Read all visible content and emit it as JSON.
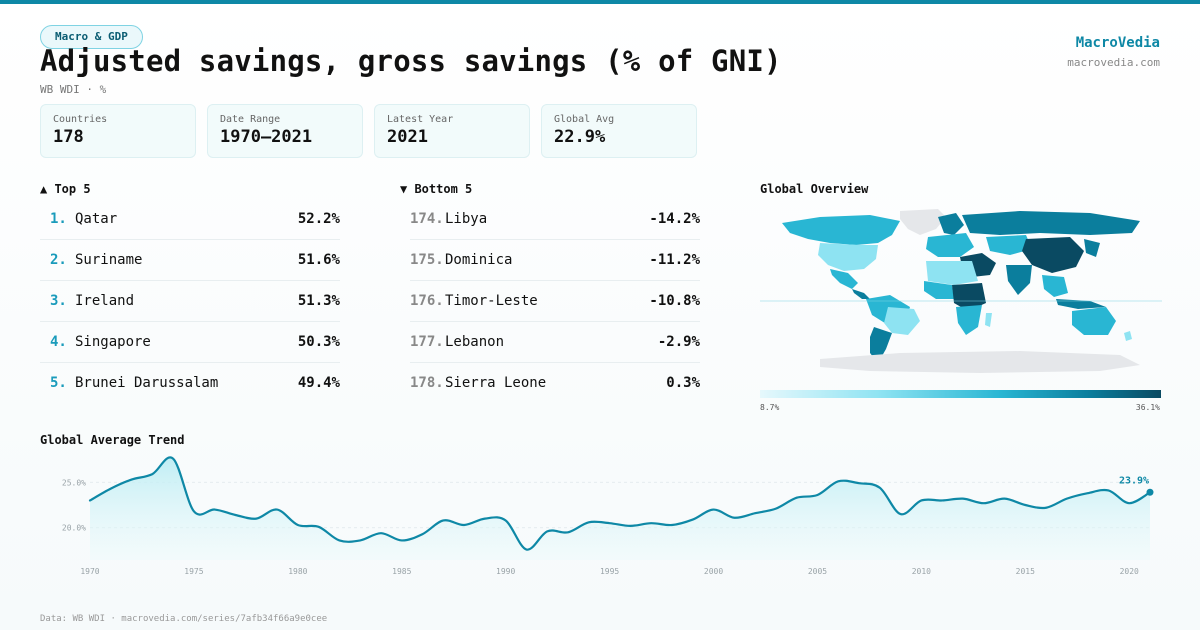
{
  "header": {
    "badge": "Macro & GDP",
    "title": "Adjusted savings, gross savings (% of GNI)",
    "subtitle": "WB WDI · %"
  },
  "brand": {
    "name": "MacroVedia",
    "url": "macrovedia.com"
  },
  "stats": [
    {
      "label": "Countries",
      "value": "178"
    },
    {
      "label": "Date Range",
      "value": "1970–2021"
    },
    {
      "label": "Latest Year",
      "value": "2021"
    },
    {
      "label": "Global Avg",
      "value": "22.9%"
    }
  ],
  "top5": {
    "title": "▲ Top 5",
    "items": [
      {
        "rank": "1.",
        "name": "Qatar",
        "value": "52.2%"
      },
      {
        "rank": "2.",
        "name": "Suriname",
        "value": "51.6%"
      },
      {
        "rank": "3.",
        "name": "Ireland",
        "value": "51.3%"
      },
      {
        "rank": "4.",
        "name": "Singapore",
        "value": "50.3%"
      },
      {
        "rank": "5.",
        "name": "Brunei Darussalam",
        "value": "49.4%"
      }
    ]
  },
  "bottom5": {
    "title": "▼ Bottom 5",
    "items": [
      {
        "rank": "174.",
        "name": "Libya",
        "value": "-14.2%"
      },
      {
        "rank": "175.",
        "name": "Dominica",
        "value": "-11.2%"
      },
      {
        "rank": "176.",
        "name": "Timor-Leste",
        "value": "-10.8%"
      },
      {
        "rank": "177.",
        "name": "Lebanon",
        "value": "-2.9%"
      },
      {
        "rank": "178.",
        "name": "Sierra Leone",
        "value": "0.3%"
      }
    ]
  },
  "map": {
    "title": "Global Overview",
    "legend_min": "8.7%",
    "legend_max": "36.1%",
    "colors": {
      "low": "#e6f8fc",
      "mid": "#29b6d3",
      "high": "#0a4a62",
      "nodata": "#e5e7ea"
    }
  },
  "trend_title": "Global Average Trend",
  "chart_data": {
    "type": "area",
    "title": "Global Average Trend",
    "x": [
      1970,
      1971,
      1972,
      1973,
      1974,
      1975,
      1976,
      1977,
      1978,
      1979,
      1980,
      1981,
      1982,
      1983,
      1984,
      1985,
      1986,
      1987,
      1988,
      1989,
      1990,
      1991,
      1992,
      1993,
      1994,
      1995,
      1996,
      1997,
      1998,
      1999,
      2000,
      2001,
      2002,
      2003,
      2004,
      2005,
      2006,
      2007,
      2008,
      2009,
      2010,
      2011,
      2012,
      2013,
      2014,
      2015,
      2016,
      2017,
      2018,
      2019,
      2020,
      2021
    ],
    "series": [
      {
        "values": [
          23.0,
          24.3,
          25.3,
          25.9,
          27.6,
          21.8,
          22.0,
          21.4,
          21.0,
          22.0,
          20.3,
          20.1,
          18.6,
          18.6,
          19.4,
          18.6,
          19.3,
          20.8,
          20.3,
          21.0,
          20.8,
          17.6,
          19.6,
          19.5,
          20.6,
          20.5,
          20.2,
          20.5,
          20.3,
          20.9,
          22.0,
          21.1,
          21.6,
          22.1,
          23.3,
          23.6,
          25.1,
          24.9,
          24.4,
          21.5,
          23.0,
          23.0,
          23.2,
          22.7,
          23.2,
          22.5,
          22.2,
          23.2,
          23.8,
          24.1,
          22.7,
          23.9
        ]
      }
    ],
    "yticks": [
      20.0,
      25.0
    ],
    "ytick_labels": [
      "20.0%",
      "25.0%"
    ],
    "xticks": [
      1970,
      1975,
      1980,
      1985,
      1990,
      1995,
      2000,
      2005,
      2010,
      2015,
      2020
    ],
    "xtick_labels": [
      "1970",
      "1975",
      "1980",
      "1985",
      "1990",
      "1995",
      "2000",
      "2005",
      "2010",
      "2015",
      "2020"
    ],
    "last_label": "23.9%",
    "ylim": [
      17.0,
      28.0
    ],
    "grid": true,
    "color": "#0e88a6"
  },
  "footer": "Data: WB WDI · macrovedia.com/series/7afb34f66a9e0cee"
}
